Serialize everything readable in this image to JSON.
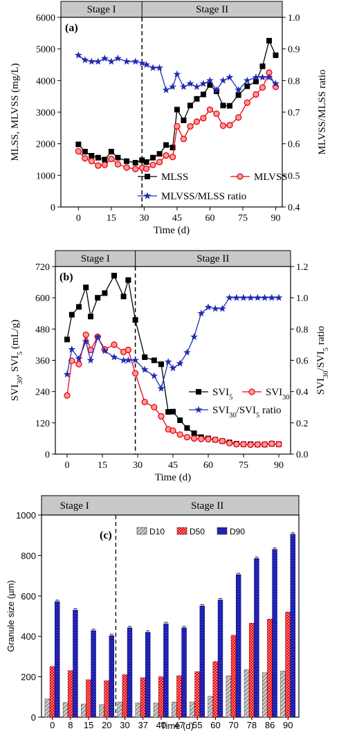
{
  "chart_data": [
    {
      "id": "a",
      "type": "line",
      "panel_label": "(a)",
      "stages": [
        "Stage I",
        "Stage II"
      ],
      "stage_boundary_x": 29,
      "xlabel": "Time (d)",
      "ylabel": "MLSS, MLVSS (mg/L)",
      "y2label": "MLVSS/MLSS ratio",
      "xlim": [
        -8,
        93
      ],
      "ylim": [
        0,
        6000
      ],
      "y2lim": [
        0.4,
        1.0
      ],
      "x_ticks": [
        "0",
        "15",
        "30",
        "45",
        "60",
        "75",
        "90"
      ],
      "x_tick_values": [
        0,
        15,
        30,
        45,
        60,
        75,
        90
      ],
      "y_ticks": [
        "0",
        "1000",
        "2000",
        "3000",
        "4000",
        "5000",
        "6000"
      ],
      "y_tick_values": [
        0,
        1000,
        2000,
        3000,
        4000,
        5000,
        6000
      ],
      "y2_ticks": [
        "0.4",
        "0.5",
        "0.6",
        "0.7",
        "0.8",
        "0.9",
        "1.0"
      ],
      "y2_tick_values": [
        0.4,
        0.5,
        0.6,
        0.7,
        0.8,
        0.9,
        1.0
      ],
      "legend": [
        "MLSS",
        "MLVSS",
        "MLVSS/MLSS ratio"
      ],
      "series": [
        {
          "name": "MLSS",
          "axis": "left",
          "marker": "square",
          "color": "#000000",
          "x": [
            0,
            3,
            6,
            9,
            12,
            15,
            18,
            22,
            26,
            29,
            31,
            34,
            37,
            40,
            43,
            45,
            48,
            51,
            54,
            57,
            60,
            63,
            66,
            69,
            73,
            77,
            81,
            84,
            87,
            90
          ],
          "y": [
            1980,
            1750,
            1620,
            1560,
            1500,
            1750,
            1560,
            1450,
            1400,
            1480,
            1420,
            1560,
            1680,
            1960,
            1880,
            3080,
            2740,
            3210,
            3420,
            3560,
            3860,
            3660,
            3210,
            3200,
            3540,
            3820,
            3970,
            4450,
            5260,
            4800
          ]
        },
        {
          "name": "MLVSS",
          "axis": "left",
          "marker": "circle",
          "color": "#e8000a",
          "x": [
            0,
            3,
            6,
            9,
            12,
            15,
            18,
            22,
            26,
            29,
            31,
            34,
            37,
            40,
            43,
            45,
            48,
            51,
            54,
            57,
            60,
            63,
            66,
            69,
            73,
            77,
            81,
            84,
            87,
            90
          ],
          "y": [
            1760,
            1540,
            1450,
            1310,
            1330,
            1520,
            1350,
            1250,
            1200,
            1240,
            1210,
            1330,
            1420,
            1630,
            1580,
            2550,
            2150,
            2550,
            2700,
            2810,
            3080,
            2950,
            2570,
            2590,
            2830,
            3300,
            3560,
            3780,
            4250,
            3800
          ]
        },
        {
          "name": "MLVSS/MLSS ratio",
          "axis": "right",
          "marker": "star",
          "color": "#1f2bb3",
          "x": [
            0,
            3,
            6,
            9,
            12,
            15,
            18,
            22,
            26,
            29,
            31,
            34,
            37,
            40,
            43,
            45,
            48,
            51,
            54,
            57,
            60,
            63,
            66,
            69,
            73,
            77,
            81,
            84,
            87,
            90
          ],
          "y": [
            0.88,
            0.865,
            0.86,
            0.86,
            0.87,
            0.86,
            0.87,
            0.86,
            0.86,
            0.855,
            0.85,
            0.84,
            0.84,
            0.77,
            0.78,
            0.82,
            0.78,
            0.79,
            0.78,
            0.79,
            0.8,
            0.77,
            0.8,
            0.81,
            0.77,
            0.8,
            0.81,
            0.81,
            0.81,
            0.79
          ]
        }
      ]
    },
    {
      "id": "b",
      "type": "line",
      "panel_label": "(b)",
      "stages": [
        "Stage I",
        "Stage II"
      ],
      "stage_boundary_x": 29,
      "xlabel": "Time (d)",
      "ylabel": "SVI30, SVI5 (mL/g)",
      "y2label": "SVI30/SVI5 ratio",
      "xlim": [
        -5,
        95
      ],
      "ylim": [
        0,
        720
      ],
      "y2lim": [
        0,
        1.2
      ],
      "x_ticks": [
        "0",
        "15",
        "30",
        "45",
        "60",
        "75",
        "90"
      ],
      "x_tick_values": [
        0,
        15,
        30,
        45,
        60,
        75,
        90
      ],
      "y_ticks": [
        "0",
        "120",
        "240",
        "360",
        "480",
        "600",
        "720"
      ],
      "y_tick_values": [
        0,
        120,
        240,
        360,
        480,
        600,
        720
      ],
      "y2_ticks": [
        "0.0",
        "0.2",
        "0.4",
        "0.6",
        "0.8",
        "1.0",
        "1.2"
      ],
      "y2_tick_values": [
        0,
        0.2,
        0.4,
        0.6,
        0.8,
        1.0,
        1.2
      ],
      "legend": [
        "SVI5",
        "SVI30",
        "SVI30/SVI5 ratio"
      ],
      "series": [
        {
          "name": "SVI5",
          "axis": "left",
          "marker": "square",
          "color": "#000000",
          "x": [
            0,
            2,
            5,
            8,
            10,
            13,
            16,
            20,
            24,
            26,
            29,
            33,
            37,
            40,
            43,
            45,
            48,
            51,
            54,
            57,
            60,
            63,
            66,
            69,
            72,
            75,
            78,
            81,
            84,
            87,
            90
          ],
          "y": [
            440,
            535,
            565,
            640,
            528,
            600,
            618,
            685,
            605,
            668,
            515,
            372,
            360,
            345,
            162,
            163,
            130,
            100,
            80,
            65,
            60,
            55,
            50,
            45,
            40,
            38,
            38,
            37,
            37,
            40,
            38
          ]
        },
        {
          "name": "SVI30",
          "axis": "left",
          "marker": "circle",
          "color": "#e8000a",
          "x": [
            0,
            2,
            5,
            8,
            10,
            13,
            16,
            20,
            24,
            26,
            29,
            33,
            37,
            40,
            43,
            45,
            48,
            51,
            54,
            57,
            60,
            63,
            66,
            69,
            72,
            75,
            78,
            81,
            84,
            87,
            90
          ],
          "y": [
            225,
            358,
            345,
            458,
            400,
            450,
            402,
            420,
            392,
            400,
            310,
            200,
            180,
            145,
            95,
            90,
            75,
            65,
            60,
            58,
            57,
            55,
            50,
            42,
            38,
            38,
            36,
            37,
            37,
            40,
            38
          ]
        },
        {
          "name": "SVI30/SVI5 ratio",
          "axis": "right",
          "marker": "star",
          "color": "#1f2bb3",
          "x": [
            0,
            2,
            5,
            8,
            10,
            13,
            16,
            20,
            24,
            26,
            29,
            33,
            37,
            40,
            43,
            45,
            48,
            51,
            54,
            57,
            60,
            63,
            66,
            69,
            72,
            75,
            78,
            81,
            84,
            87,
            90
          ],
          "y": [
            0.51,
            0.67,
            0.61,
            0.72,
            0.6,
            0.75,
            0.66,
            0.62,
            0.6,
            0.6,
            0.6,
            0.54,
            0.5,
            0.42,
            0.59,
            0.55,
            0.58,
            0.65,
            0.75,
            0.9,
            0.94,
            0.93,
            0.93,
            1.0,
            1.0,
            1.0,
            1.0,
            1.0,
            1.0,
            1.0,
            1.0
          ]
        }
      ]
    },
    {
      "id": "c",
      "type": "bar",
      "panel_label": "(c)",
      "stages": [
        "Stage I",
        "Stage II"
      ],
      "stage_boundary_after_index": 3,
      "xlabel": "Time (d)",
      "ylabel": "Granule size (µm)",
      "ylim": [
        0,
        1000
      ],
      "y_ticks": [
        "0",
        "200",
        "400",
        "600",
        "800",
        "1000"
      ],
      "y_tick_values": [
        0,
        200,
        400,
        600,
        800,
        1000
      ],
      "categories": [
        "0",
        "8",
        "15",
        "20",
        "30",
        "37",
        "40",
        "47",
        "55",
        "60",
        "70",
        "78",
        "86",
        "90"
      ],
      "legend": [
        "D10",
        "D50",
        "D90"
      ],
      "series": [
        {
          "name": "D10",
          "color": "#888888",
          "values": [
            90,
            72,
            65,
            62,
            75,
            70,
            70,
            75,
            75,
            103,
            205,
            235,
            220,
            228
          ]
        },
        {
          "name": "D50",
          "color": "#e8000a",
          "values": [
            250,
            230,
            185,
            180,
            210,
            195,
            200,
            205,
            225,
            275,
            405,
            465,
            485,
            520
          ]
        },
        {
          "name": "D90",
          "color": "#1a1aaa",
          "values": [
            572,
            530,
            428,
            403,
            442,
            420,
            462,
            442,
            550,
            580,
            705,
            785,
            830,
            905
          ]
        }
      ]
    }
  ]
}
